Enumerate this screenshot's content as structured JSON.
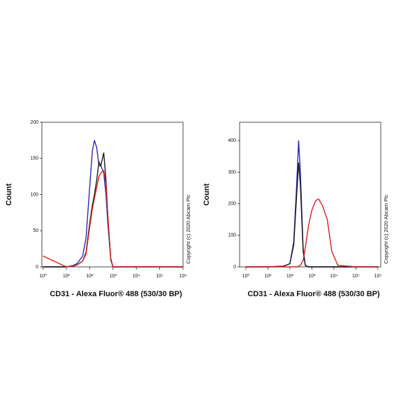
{
  "chart_data": [
    {
      "type": "line",
      "xscale": "log",
      "grid": false,
      "xlabel": "CD31 - Alexa Fluor® 488 (530/30 BP)",
      "ylabel": "Count",
      "annotation": "Copyright (c) 2020 Abcam Plc",
      "xlim": [
        0.9,
        1000000
      ],
      "ylim": [
        0,
        200
      ],
      "xticks": [
        {
          "value": 1,
          "label": "10⁰"
        },
        {
          "value": 10,
          "label": "10¹"
        },
        {
          "value": 100,
          "label": "10²"
        },
        {
          "value": 1000,
          "label": "10³"
        },
        {
          "value": 10000,
          "label": "10⁴"
        },
        {
          "value": 100000,
          "label": "10⁵"
        },
        {
          "value": 1000000,
          "label": "10⁶"
        }
      ],
      "yticks": [
        0,
        50,
        100,
        150,
        200
      ],
      "x": [
        1,
        10,
        20,
        30,
        50,
        70,
        100,
        130,
        160,
        200,
        250,
        300,
        400,
        500,
        600,
        800,
        1000,
        2000,
        10000,
        100000,
        1000000
      ],
      "series": [
        {
          "color": "#2a2ab8",
          "values": [
            0,
            0,
            2,
            5,
            15,
            40,
            110,
            160,
            175,
            165,
            140,
            140,
            130,
            100,
            60,
            10,
            0,
            0,
            0,
            0,
            0
          ]
        },
        {
          "color": "#1a1a1a",
          "values": [
            0,
            0,
            1,
            3,
            8,
            20,
            60,
            85,
            100,
            120,
            145,
            140,
            158,
            120,
            70,
            10,
            0,
            0,
            0,
            0,
            0
          ]
        },
        {
          "color": "#d42020",
          "values": [
            15,
            0,
            1,
            3,
            8,
            18,
            55,
            80,
            95,
            110,
            125,
            130,
            133,
            115,
            70,
            12,
            0,
            0,
            0,
            0,
            0
          ]
        }
      ]
    },
    {
      "type": "line",
      "xscale": "log",
      "grid": false,
      "xlabel": "CD31 - Alexa Fluor® 488 (530/30 BP)",
      "ylabel": "Count",
      "annotation": "Copyright (c) 2020 Abcam Plc",
      "xlim": [
        0.52,
        1350000
      ],
      "ylim": [
        0,
        458
      ],
      "xticks": [
        {
          "value": 1,
          "label": "10⁰"
        },
        {
          "value": 10,
          "label": "10¹"
        },
        {
          "value": 100,
          "label": "10²"
        },
        {
          "value": 1000,
          "label": "10³"
        },
        {
          "value": 10000,
          "label": "10⁴"
        },
        {
          "value": 100000,
          "label": "10⁵"
        },
        {
          "value": 1000000,
          "label": "10⁶"
        }
      ],
      "yticks": [
        0,
        100,
        200,
        300,
        400
      ],
      "x": [
        1,
        10,
        50,
        100,
        150,
        200,
        250,
        300,
        400,
        500,
        700,
        1000,
        1500,
        2000,
        3000,
        5000,
        8000,
        15000,
        100000,
        1000000
      ],
      "series": [
        {
          "color": "#2a2ab8",
          "values": [
            0,
            0,
            2,
            10,
            80,
            250,
            400,
            300,
            60,
            5,
            0,
            0,
            0,
            0,
            0,
            0,
            0,
            0,
            0,
            0
          ]
        },
        {
          "color": "#1a1a1a",
          "values": [
            0,
            0,
            2,
            10,
            70,
            220,
            330,
            260,
            50,
            5,
            0,
            0,
            0,
            0,
            0,
            0,
            0,
            0,
            0,
            0
          ]
        },
        {
          "color": "#d42020",
          "values": [
            0,
            0,
            0,
            0,
            0,
            0,
            2,
            5,
            20,
            60,
            130,
            180,
            210,
            215,
            195,
            150,
            50,
            5,
            0,
            0
          ]
        }
      ]
    }
  ]
}
